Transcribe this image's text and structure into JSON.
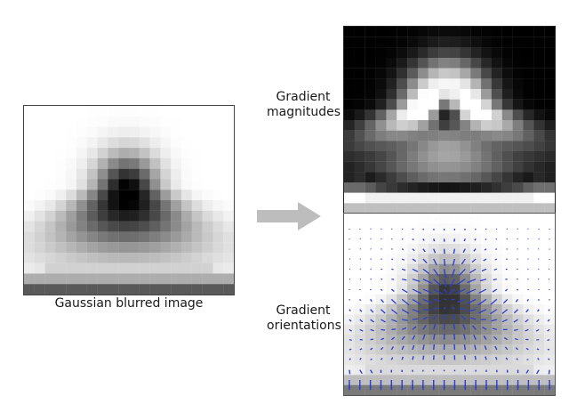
{
  "captions": {
    "blurred": "Gaussian blurred image",
    "magnitudes_line1": "Gradient",
    "magnitudes_line2": "magnitudes",
    "orientations_line1": "Gradient",
    "orientations_line2": "orientations"
  },
  "colors": {
    "arrow": "#bdbdbd",
    "orientation_arrows": "#2a3fd6",
    "magnitude_background": "#050505",
    "blurred_background": "#fbfbfb"
  },
  "pixel_grid": {
    "cols": 20,
    "rows": 18
  }
}
